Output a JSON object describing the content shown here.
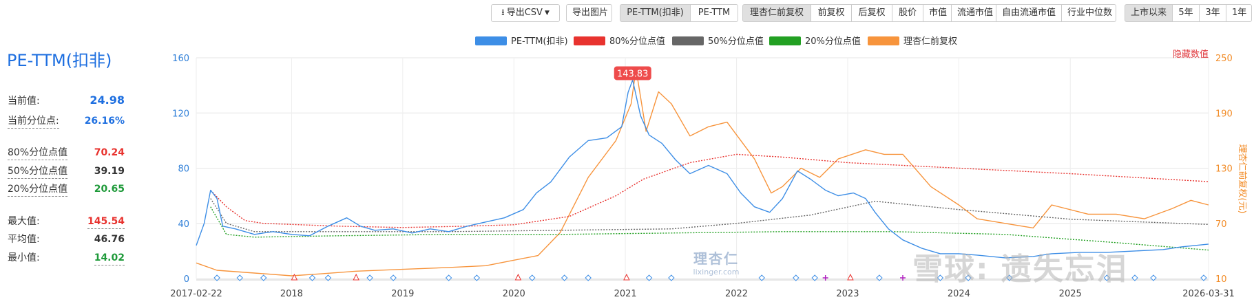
{
  "toolbar": {
    "export_csv": "导出CSV",
    "export_image": "导出图片",
    "metric_tabs": [
      "PE-TTM(扣非)",
      "PE-TTM"
    ],
    "price_tabs": [
      "理杏仁前复权",
      "前复权",
      "后复权",
      "股价",
      "市值",
      "流通市值",
      "自由流通市值",
      "行业中位数"
    ],
    "range_tabs": [
      "上市以来",
      "5年",
      "3年",
      "1年"
    ],
    "active_metric": "PE-TTM(扣非)",
    "active_price": "理杏仁前复权",
    "active_range": "上市以来"
  },
  "panel": {
    "title": "PE-TTM(扣非)",
    "current_value_label": "当前值:",
    "current_value": "24.98",
    "current_pct_label": "当前分位点:",
    "current_pct": "26.16%",
    "p80_label": "80%分位点值",
    "p80": "70.24",
    "p50_label": "50%分位点值",
    "p50": "39.19",
    "p20_label": "20%分位点值",
    "p20": "20.65",
    "max_label": "最大值:",
    "max": "145.54",
    "avg_label": "平均值:",
    "avg": "46.76",
    "min_label": "最小值:",
    "min": "14.02"
  },
  "colors": {
    "pe": "#3d8ee6",
    "p80": "#e8332f",
    "p50": "#666666",
    "p20": "#22a022",
    "price": "#f7943c",
    "blue_value": "#1e6fe0",
    "red_value": "#e8332f",
    "green_value": "#1f9a3a"
  },
  "hide_label": "隐藏数值",
  "watermark": "雪球: 遗失忘泪",
  "logo": {
    "line1": "理杏仁",
    "line2": "lixinger.com"
  },
  "chart_data": {
    "type": "line",
    "title": "",
    "x_range": [
      "2017-02-22",
      "2026-03-31"
    ],
    "x_tick_labels": [
      "2017-02-22",
      "2018",
      "2019",
      "2020",
      "2021",
      "2022",
      "2023",
      "2024",
      "2025",
      "2026-03-31"
    ],
    "y_left": {
      "min": 0,
      "max": 160,
      "ticks": [
        0,
        40,
        80,
        120,
        160
      ]
    },
    "y_right": {
      "label": "理杏仁前复权(元)",
      "min": 10,
      "max": 250,
      "ticks": [
        10,
        70,
        130,
        190,
        250
      ]
    },
    "legend": [
      "PE-TTM(扣非)",
      "80%分位点值",
      "50%分位点值",
      "20%分位点值",
      "理杏仁前复权"
    ],
    "peak_label": "143.83",
    "series": [
      {
        "name": "PE-TTM(扣非)",
        "axis": "left",
        "points": [
          [
            "2017-02-22",
            24
          ],
          [
            "2017-03-20",
            40
          ],
          [
            "2017-04-10",
            64
          ],
          [
            "2017-05-01",
            58
          ],
          [
            "2017-05-20",
            38
          ],
          [
            "2017-07-01",
            36
          ],
          [
            "2017-09-01",
            32
          ],
          [
            "2017-11-01",
            34
          ],
          [
            "2018-01-01",
            32
          ],
          [
            "2018-03-01",
            31
          ],
          [
            "2018-05-01",
            38
          ],
          [
            "2018-07-01",
            44
          ],
          [
            "2018-08-15",
            38
          ],
          [
            "2018-10-01",
            35
          ],
          [
            "2018-12-01",
            36
          ],
          [
            "2019-02-01",
            33
          ],
          [
            "2019-04-01",
            36
          ],
          [
            "2019-06-01",
            34
          ],
          [
            "2019-08-01",
            38
          ],
          [
            "2019-10-01",
            41
          ],
          [
            "2019-12-01",
            44
          ],
          [
            "2020-02-01",
            50
          ],
          [
            "2020-03-15",
            62
          ],
          [
            "2020-05-01",
            70
          ],
          [
            "2020-07-01",
            88
          ],
          [
            "2020-09-01",
            100
          ],
          [
            "2020-11-01",
            102
          ],
          [
            "2020-12-20",
            110
          ],
          [
            "2021-01-10",
            135
          ],
          [
            "2021-01-25",
            143.83
          ],
          [
            "2021-02-20",
            118
          ],
          [
            "2021-03-20",
            104
          ],
          [
            "2021-05-01",
            98
          ],
          [
            "2021-06-15",
            86
          ],
          [
            "2021-08-01",
            76
          ],
          [
            "2021-10-01",
            82
          ],
          [
            "2021-12-01",
            76
          ],
          [
            "2022-01-15",
            62
          ],
          [
            "2022-03-01",
            52
          ],
          [
            "2022-04-20",
            48
          ],
          [
            "2022-06-01",
            58
          ],
          [
            "2022-07-20",
            78
          ],
          [
            "2022-09-01",
            72
          ],
          [
            "2022-10-20",
            64
          ],
          [
            "2022-12-01",
            60
          ],
          [
            "2023-01-20",
            62
          ],
          [
            "2023-03-01",
            58
          ],
          [
            "2023-04-01",
            48
          ],
          [
            "2023-05-15",
            36
          ],
          [
            "2023-07-01",
            28
          ],
          [
            "2023-09-01",
            22
          ],
          [
            "2023-11-01",
            18
          ],
          [
            "2024-01-01",
            18
          ],
          [
            "2024-03-01",
            17
          ],
          [
            "2024-06-01",
            15
          ],
          [
            "2024-09-01",
            16
          ],
          [
            "2024-11-01",
            18
          ],
          [
            "2025-02-01",
            19
          ],
          [
            "2025-05-01",
            19
          ],
          [
            "2025-08-01",
            20
          ],
          [
            "2025-11-01",
            21
          ],
          [
            "2026-01-01",
            23
          ],
          [
            "2026-03-31",
            24.98
          ]
        ]
      },
      {
        "name": "80%分位点值",
        "axis": "left",
        "points": [
          [
            "2017-04-10",
            64
          ],
          [
            "2017-06-01",
            52
          ],
          [
            "2017-08-01",
            42
          ],
          [
            "2017-10-01",
            40
          ],
          [
            "2018-06-01",
            38
          ],
          [
            "2019-01-01",
            37
          ],
          [
            "2019-08-01",
            38
          ],
          [
            "2020-01-01",
            39
          ],
          [
            "2020-07-01",
            45
          ],
          [
            "2020-12-01",
            60
          ],
          [
            "2021-03-01",
            72
          ],
          [
            "2021-08-01",
            84
          ],
          [
            "2022-01-01",
            90
          ],
          [
            "2022-06-01",
            88
          ],
          [
            "2023-01-01",
            84
          ],
          [
            "2024-01-01",
            80
          ],
          [
            "2025-01-01",
            76
          ],
          [
            "2026-03-31",
            70.24
          ]
        ]
      },
      {
        "name": "50%分位点值",
        "axis": "left",
        "points": [
          [
            "2017-04-10",
            58
          ],
          [
            "2017-06-01",
            40
          ],
          [
            "2017-09-01",
            34
          ],
          [
            "2018-06-01",
            34
          ],
          [
            "2019-06-01",
            34
          ],
          [
            "2020-06-01",
            35
          ],
          [
            "2021-06-01",
            36
          ],
          [
            "2022-01-01",
            40
          ],
          [
            "2022-09-01",
            46
          ],
          [
            "2023-04-01",
            56
          ],
          [
            "2024-01-01",
            50
          ],
          [
            "2025-01-01",
            43
          ],
          [
            "2026-03-31",
            39.19
          ]
        ]
      },
      {
        "name": "20%分位点值",
        "axis": "left",
        "points": [
          [
            "2017-04-10",
            52
          ],
          [
            "2017-06-01",
            32
          ],
          [
            "2017-09-01",
            30
          ],
          [
            "2018-06-01",
            31
          ],
          [
            "2019-06-01",
            32
          ],
          [
            "2020-06-01",
            32
          ],
          [
            "2021-06-01",
            33
          ],
          [
            "2022-06-01",
            34
          ],
          [
            "2023-06-01",
            34
          ],
          [
            "2024-06-01",
            32
          ],
          [
            "2025-06-01",
            26
          ],
          [
            "2026-03-31",
            20.65
          ]
        ]
      },
      {
        "name": "理杏仁前复权",
        "axis": "right",
        "points": [
          [
            "2017-02-22",
            27
          ],
          [
            "2017-05-01",
            19
          ],
          [
            "2017-09-01",
            16
          ],
          [
            "2018-01-01",
            13
          ],
          [
            "2018-04-01",
            15
          ],
          [
            "2018-08-01",
            18
          ],
          [
            "2019-01-01",
            20
          ],
          [
            "2019-06-01",
            22
          ],
          [
            "2019-10-01",
            24
          ],
          [
            "2020-01-01",
            30
          ],
          [
            "2020-03-20",
            35
          ],
          [
            "2020-06-01",
            60
          ],
          [
            "2020-09-01",
            120
          ],
          [
            "2020-12-01",
            160
          ],
          [
            "2021-01-20",
            200
          ],
          [
            "2021-02-05",
            238
          ],
          [
            "2021-03-10",
            170
          ],
          [
            "2021-04-20",
            213
          ],
          [
            "2021-06-01",
            200
          ],
          [
            "2021-08-01",
            165
          ],
          [
            "2021-10-01",
            175
          ],
          [
            "2021-12-01",
            180
          ],
          [
            "2022-03-01",
            140
          ],
          [
            "2022-04-25",
            103
          ],
          [
            "2022-06-01",
            110
          ],
          [
            "2022-08-01",
            130
          ],
          [
            "2022-10-01",
            120
          ],
          [
            "2022-12-01",
            140
          ],
          [
            "2023-03-01",
            150
          ],
          [
            "2023-05-01",
            145
          ],
          [
            "2023-07-01",
            145
          ],
          [
            "2023-10-01",
            110
          ],
          [
            "2024-01-01",
            90
          ],
          [
            "2024-03-01",
            75
          ],
          [
            "2024-06-01",
            70
          ],
          [
            "2024-09-01",
            65
          ],
          [
            "2024-11-01",
            90
          ],
          [
            "2025-03-01",
            80
          ],
          [
            "2025-06-01",
            80
          ],
          [
            "2025-09-01",
            75
          ],
          [
            "2025-12-01",
            86
          ],
          [
            "2026-02-01",
            95
          ],
          [
            "2026-03-31",
            90
          ]
        ]
      }
    ],
    "event_markers": [
      {
        "date": "2017-05-01",
        "type": "diamond"
      },
      {
        "date": "2017-07-15",
        "type": "diamond"
      },
      {
        "date": "2017-10-01",
        "type": "diamond"
      },
      {
        "date": "2018-01-10",
        "type": "triangle"
      },
      {
        "date": "2018-03-10",
        "type": "diamond"
      },
      {
        "date": "2018-05-01",
        "type": "diamond"
      },
      {
        "date": "2018-08-01",
        "type": "triangle"
      },
      {
        "date": "2018-09-15",
        "type": "diamond"
      },
      {
        "date": "2018-12-01",
        "type": "diamond"
      },
      {
        "date": "2019-06-01",
        "type": "diamond"
      },
      {
        "date": "2019-09-01",
        "type": "diamond"
      },
      {
        "date": "2020-01-15",
        "type": "triangle"
      },
      {
        "date": "2020-03-01",
        "type": "diamond"
      },
      {
        "date": "2020-06-15",
        "type": "diamond"
      },
      {
        "date": "2020-09-01",
        "type": "diamond"
      },
      {
        "date": "2021-01-05",
        "type": "triangle"
      },
      {
        "date": "2021-03-20",
        "type": "diamond"
      },
      {
        "date": "2021-06-01",
        "type": "diamond"
      },
      {
        "date": "2022-03-25",
        "type": "diamond"
      },
      {
        "date": "2022-07-15",
        "type": "diamond"
      },
      {
        "date": "2022-09-15",
        "type": "diamond"
      },
      {
        "date": "2022-10-20",
        "type": "plus"
      },
      {
        "date": "2023-01-10",
        "type": "triangle"
      },
      {
        "date": "2023-04-15",
        "type": "diamond"
      },
      {
        "date": "2023-07-01",
        "type": "plus"
      },
      {
        "date": "2023-11-01",
        "type": "diamond"
      },
      {
        "date": "2024-02-01",
        "type": "diamond"
      },
      {
        "date": "2024-06-15",
        "type": "diamond"
      },
      {
        "date": "2025-05-01",
        "type": "diamond"
      },
      {
        "date": "2025-08-01",
        "type": "diamond"
      },
      {
        "date": "2025-10-01",
        "type": "diamond"
      },
      {
        "date": "2026-03-15",
        "type": "diamond"
      }
    ]
  }
}
